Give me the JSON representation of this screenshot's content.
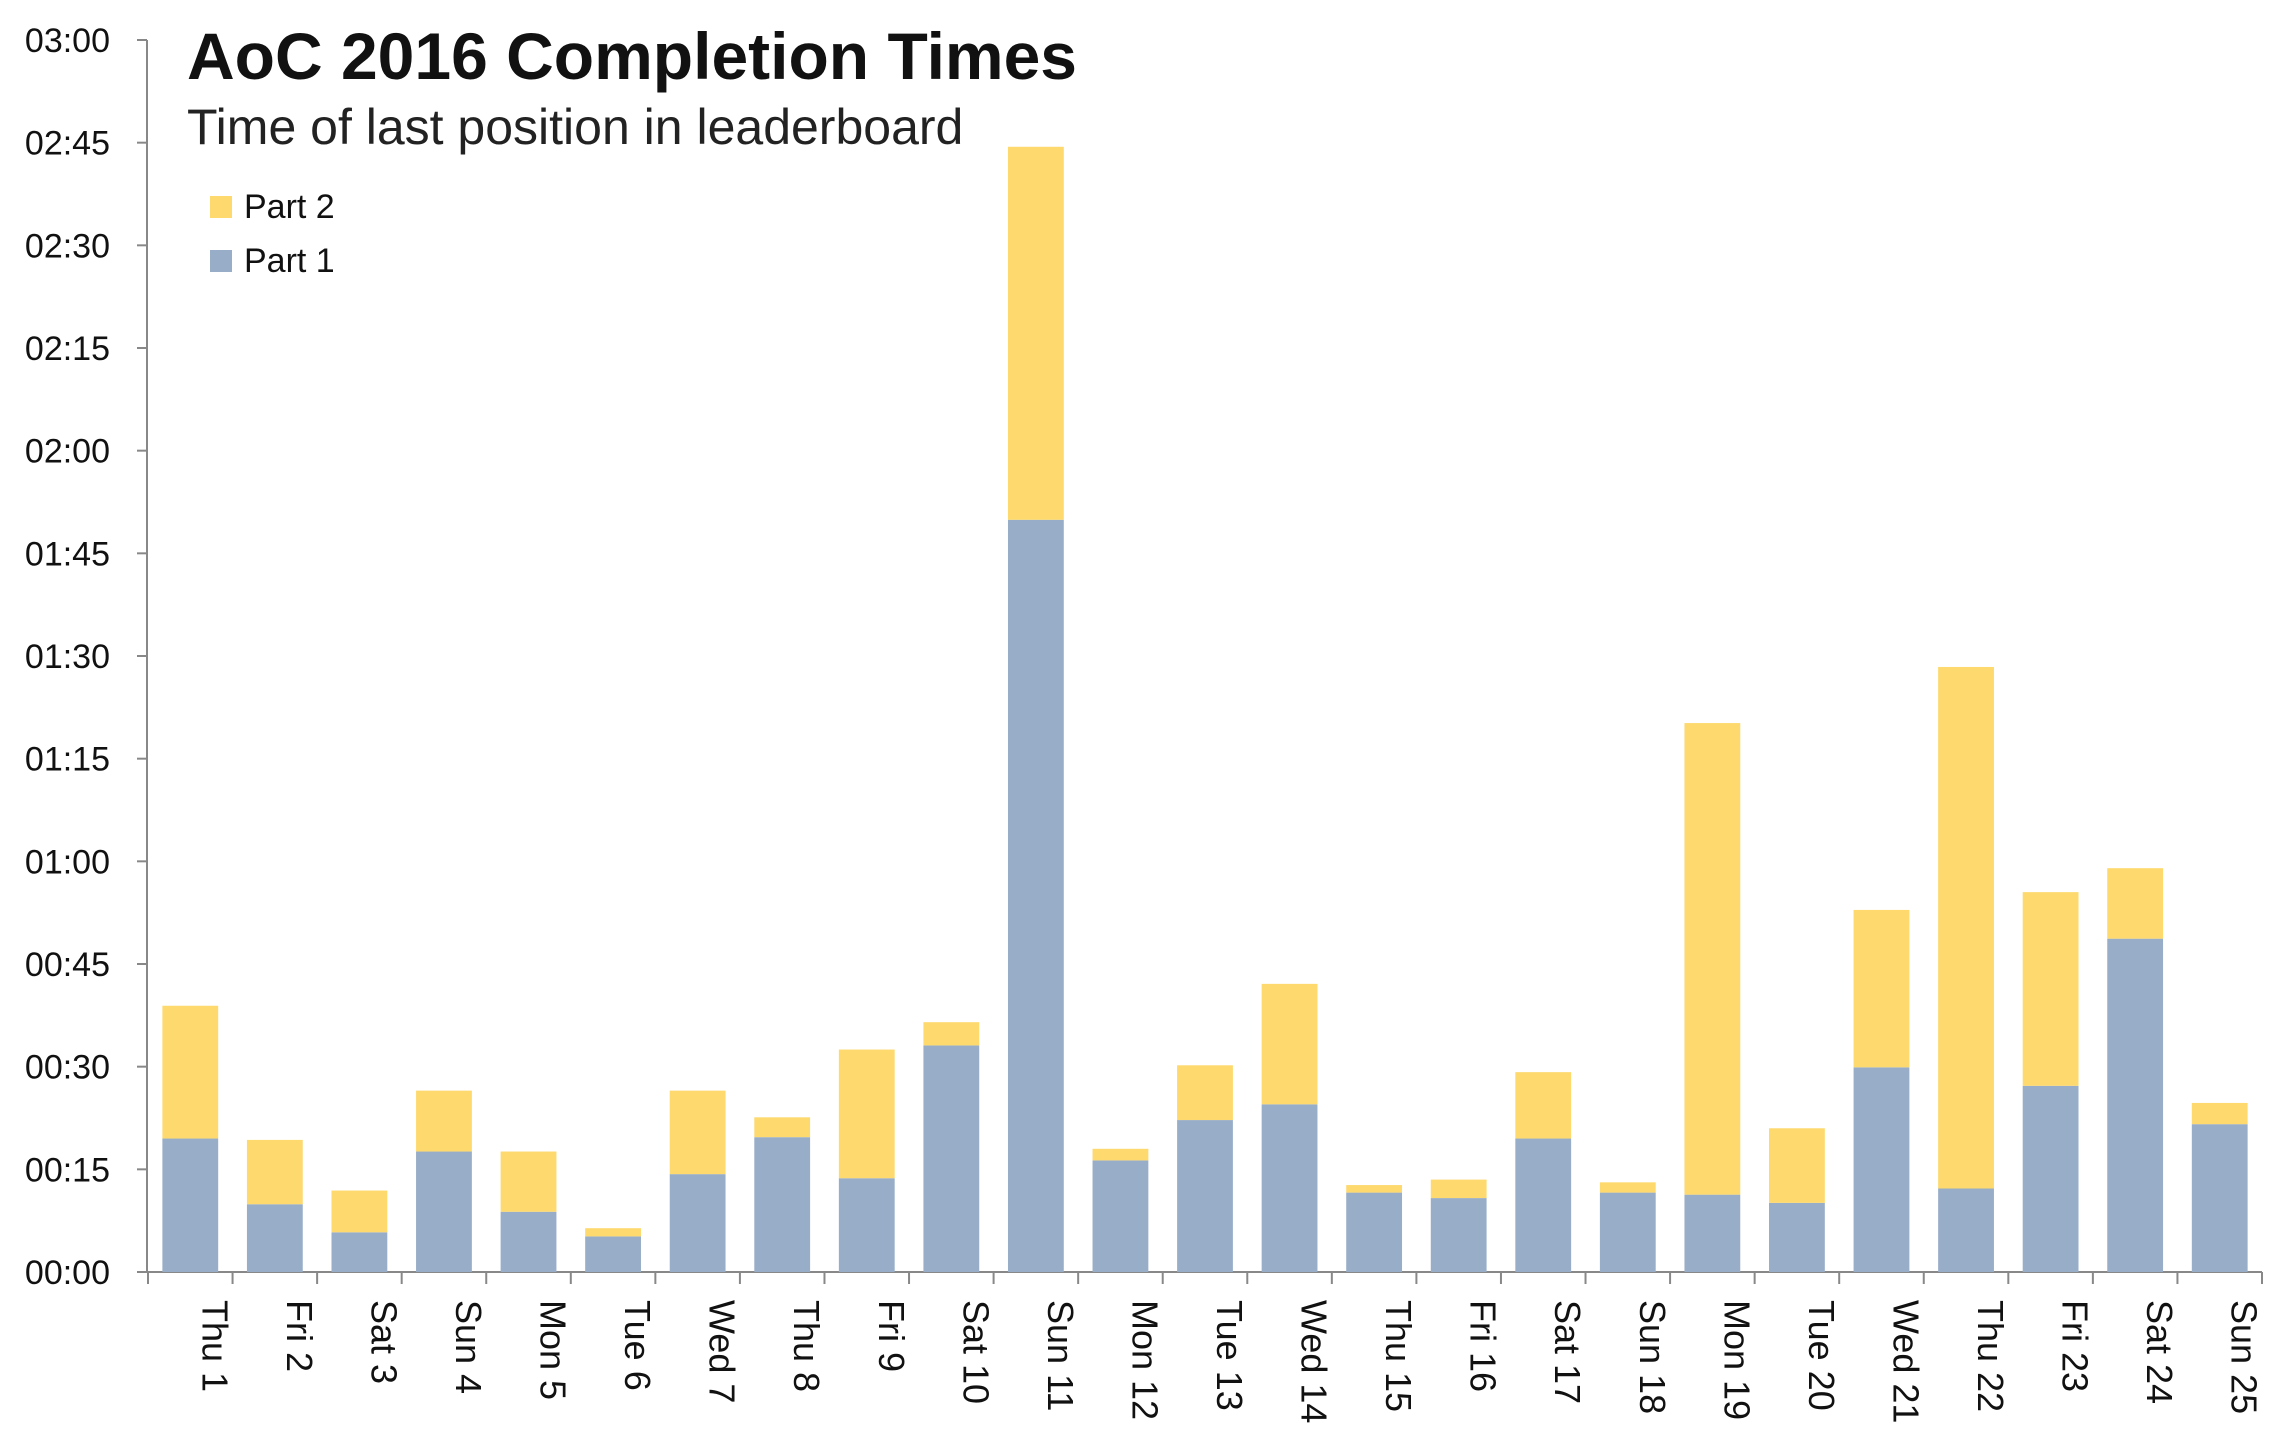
{
  "chart_data": {
    "type": "bar",
    "stacked": true,
    "title": "AoC 2016 Completion Times",
    "subtitle": "Time of last position in leaderboard",
    "categories": [
      "Thu 1",
      "Fri 2",
      "Sat 3",
      "Sun 4",
      "Mon 5",
      "Tue 6",
      "Wed 7",
      "Thu 8",
      "Fri 9",
      "Sat 10",
      "Sun 11",
      "Mon 12",
      "Tue 13",
      "Wed 14",
      "Thu 15",
      "Fri 16",
      "Sat 17",
      "Sun 18",
      "Mon 19",
      "Tue 20",
      "Wed 21",
      "Thu 22",
      "Fri 23",
      "Sat 24",
      "Sun 25"
    ],
    "series": [
      {
        "name": "Part 1",
        "color": "#98AEC8",
        "values": [
          19.5,
          9.9,
          5.8,
          17.6,
          8.8,
          5.2,
          14.3,
          19.7,
          13.7,
          33.1,
          109.9,
          16.3,
          22.2,
          24.5,
          11.6,
          10.8,
          19.5,
          11.6,
          11.3,
          10.1,
          29.9,
          12.2,
          27.2,
          48.7,
          21.6
        ]
      },
      {
        "name": "Part 2",
        "color": "#FDD96E",
        "values": [
          19.4,
          9.4,
          6.1,
          8.9,
          8.8,
          1.2,
          12.2,
          2.9,
          18.8,
          3.4,
          54.5,
          1.7,
          8.0,
          17.6,
          1.1,
          2.7,
          9.7,
          1.5,
          68.9,
          10.9,
          23.0,
          76.2,
          28.3,
          10.3,
          3.1
        ]
      }
    ],
    "yaxis": {
      "min": 0,
      "max": 180,
      "tick_step": 15,
      "unit": "minutes",
      "tick_labels": [
        "00:00",
        "00:15",
        "00:30",
        "00:45",
        "01:00",
        "01:15",
        "01:30",
        "01:45",
        "02:00",
        "02:15",
        "02:30",
        "02:45",
        "03:00"
      ]
    },
    "grid": false,
    "legend": {
      "placement": "top-left",
      "order": [
        "Part 2",
        "Part 1"
      ]
    }
  }
}
